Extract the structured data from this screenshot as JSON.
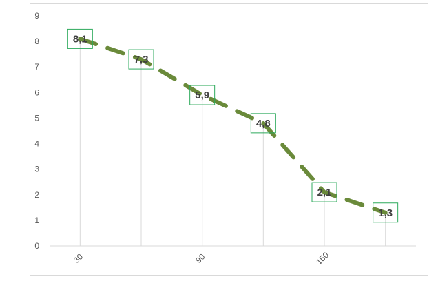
{
  "chart_data": {
    "type": "line",
    "x": [
      30,
      60,
      90,
      120,
      150,
      180
    ],
    "x_tick_labels": [
      "30",
      "90",
      "150"
    ],
    "values": [
      8.1,
      7.3,
      5.9,
      4.8,
      2.1,
      1.3
    ],
    "data_labels": [
      "8,1",
      "7,3",
      "5,9",
      "4,8",
      "2,1",
      "1,3"
    ],
    "ylim": [
      0,
      9
    ],
    "y_ticks": [
      "0",
      "1",
      "2",
      "3",
      "4",
      "5",
      "6",
      "7",
      "8",
      "9"
    ],
    "grid": false,
    "drop_lines": true,
    "legend": "none",
    "series_style": "dashed",
    "colors": {
      "line": "#6a8a3a",
      "label_border": "#2eaa5c",
      "drop_line": "#d9d9d9",
      "axis": "#d9d9d9"
    }
  }
}
